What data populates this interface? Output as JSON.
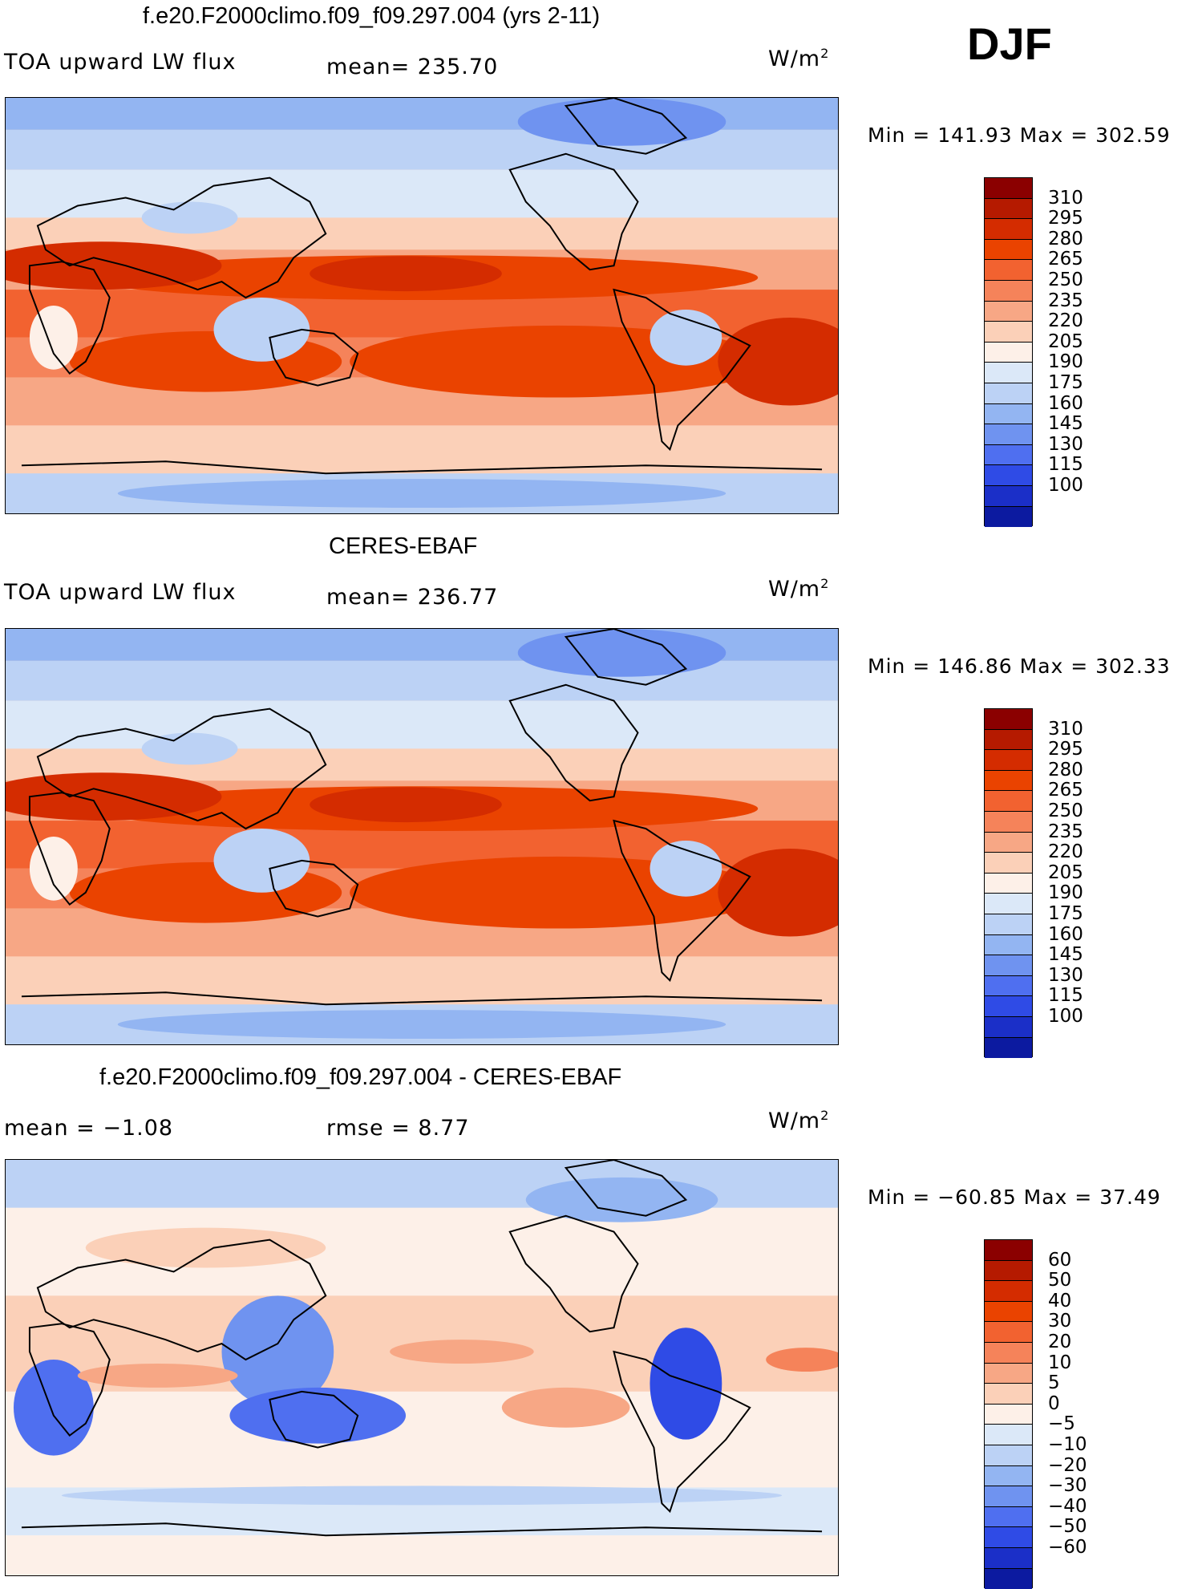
{
  "season": "DJF",
  "units": "W/m",
  "units_sup": "2",
  "panels": [
    {
      "title": "f.e20.F2000climo.f09_f09.297.004 (yrs 2-11)",
      "left_label": "TOA upward LW flux",
      "center_label": "mean= 235.70",
      "min_max": "Min = 141.93 Max = 302.59",
      "scale": "abs"
    },
    {
      "title": "CERES-EBAF",
      "left_label": "TOA upward LW flux",
      "center_label": "mean= 236.77",
      "min_max": "Min = 146.86 Max = 302.33",
      "scale": "abs"
    },
    {
      "title": "f.e20.F2000climo.f09_f09.297.004 - CERES-EBAF",
      "left_label": "mean = −1.08",
      "center_label": "rmse = 8.77",
      "min_max": "Min = −60.85 Max = 37.49",
      "scale": "diff"
    }
  ],
  "colorbars": {
    "abs": {
      "levels": [
        "310",
        "295",
        "280",
        "265",
        "250",
        "235",
        "220",
        "205",
        "190",
        "175",
        "160",
        "145",
        "130",
        "115",
        "100"
      ],
      "colors": [
        "#8b0000",
        "#b51a00",
        "#d42c00",
        "#ea4300",
        "#f26230",
        "#f5835a",
        "#f7a785",
        "#fbd0b8",
        "#fdf0e8",
        "#dbe8f8",
        "#bcd2f5",
        "#93b5f2",
        "#6f93f0",
        "#4f6ff0",
        "#2f4be6",
        "#1b2fc8",
        "#0c1aa0"
      ]
    },
    "diff": {
      "levels": [
        "60",
        "50",
        "40",
        "30",
        "20",
        "10",
        "5",
        "0",
        "−5",
        "−10",
        "−20",
        "−30",
        "−40",
        "−50",
        "−60"
      ],
      "colors": [
        "#8b0000",
        "#b51a00",
        "#d42c00",
        "#ea4300",
        "#f26230",
        "#f5835a",
        "#f7a785",
        "#fbd0b8",
        "#fdf0e8",
        "#dbe8f8",
        "#bcd2f5",
        "#93b5f2",
        "#6f93f0",
        "#4f6ff0",
        "#2f4be6",
        "#1b2fc8",
        "#0c1aa0"
      ]
    }
  }
}
